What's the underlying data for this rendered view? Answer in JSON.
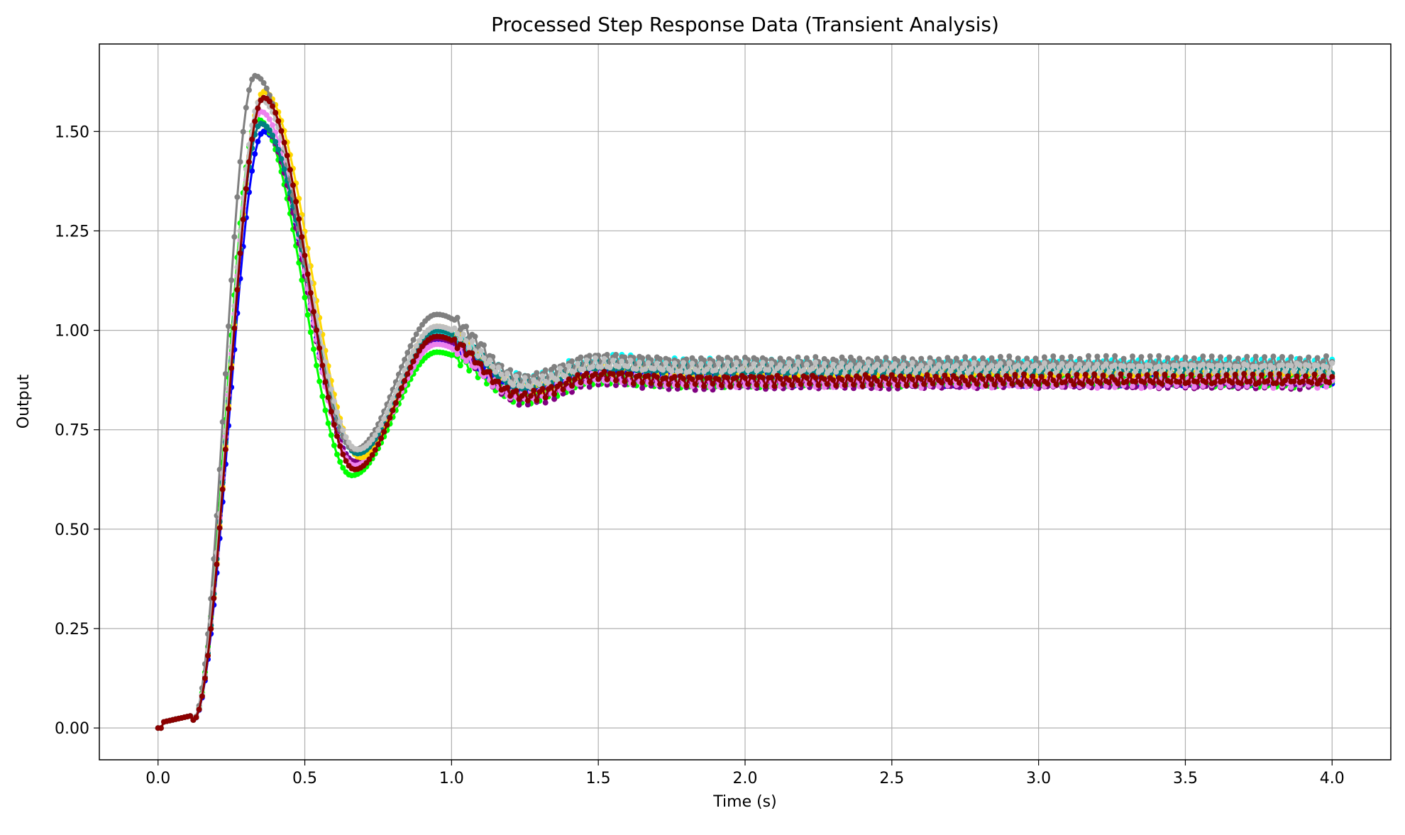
{
  "chart_data": {
    "type": "line",
    "title": "Processed Step Response Data (Transient Analysis)",
    "xlabel": "Time (s)",
    "ylabel": "Output",
    "xlim": [
      -0.2,
      4.2
    ],
    "ylim": [
      -0.08,
      1.72
    ],
    "xticks": [
      0.0,
      0.5,
      1.0,
      1.5,
      2.0,
      2.5,
      3.0,
      3.5,
      4.0
    ],
    "xtick_labels": [
      "0.0",
      "0.5",
      "1.0",
      "1.5",
      "2.0",
      "2.5",
      "3.0",
      "3.5",
      "4.0"
    ],
    "yticks": [
      0.0,
      0.25,
      0.5,
      0.75,
      1.0,
      1.25,
      1.5
    ],
    "ytick_labels": [
      "0.00",
      "0.25",
      "0.50",
      "0.75",
      "1.00",
      "1.25",
      "1.50"
    ],
    "grid": true,
    "legend": "none",
    "series": [
      {
        "color": "#0000ff",
        "peak": 1.5,
        "peak_t": 0.36,
        "valley": 0.67,
        "valley_t": 0.67,
        "second_peak": 0.97,
        "final": 0.875
      },
      {
        "color": "#00ff00",
        "peak": 1.53,
        "peak_t": 0.34,
        "valley": 0.635,
        "valley_t": 0.66,
        "second_peak": 0.945,
        "final": 0.87
      },
      {
        "color": "#00ffff",
        "peak": 1.52,
        "peak_t": 0.35,
        "valley": 0.69,
        "valley_t": 0.68,
        "second_peak": 0.99,
        "final": 0.915
      },
      {
        "color": "#800080",
        "peak": 1.52,
        "peak_t": 0.35,
        "valley": 0.67,
        "valley_t": 0.67,
        "second_peak": 0.98,
        "final": 0.865
      },
      {
        "color": "#ee82ee",
        "peak": 1.55,
        "peak_t": 0.35,
        "valley": 0.66,
        "valley_t": 0.67,
        "second_peak": 0.965,
        "final": 0.87
      },
      {
        "color": "#ffd700",
        "peak": 1.6,
        "peak_t": 0.36,
        "valley": 0.68,
        "valley_t": 0.69,
        "second_peak": 1.01,
        "final": 0.895
      },
      {
        "color": "#008080",
        "peak": 1.52,
        "peak_t": 0.35,
        "valley": 0.69,
        "valley_t": 0.68,
        "second_peak": 1.0,
        "final": 0.9
      },
      {
        "color": "#808080",
        "peak": 1.64,
        "peak_t": 0.33,
        "valley": 0.7,
        "valley_t": 0.67,
        "second_peak": 1.04,
        "final": 0.92
      },
      {
        "color": "#c0c0c0",
        "peak": 1.58,
        "peak_t": 0.35,
        "valley": 0.7,
        "valley_t": 0.68,
        "second_peak": 1.01,
        "final": 0.905
      },
      {
        "color": "#8b0000",
        "peak": 1.585,
        "peak_t": 0.36,
        "valley": 0.65,
        "valley_t": 0.67,
        "second_peak": 0.985,
        "final": 0.875
      }
    ]
  }
}
